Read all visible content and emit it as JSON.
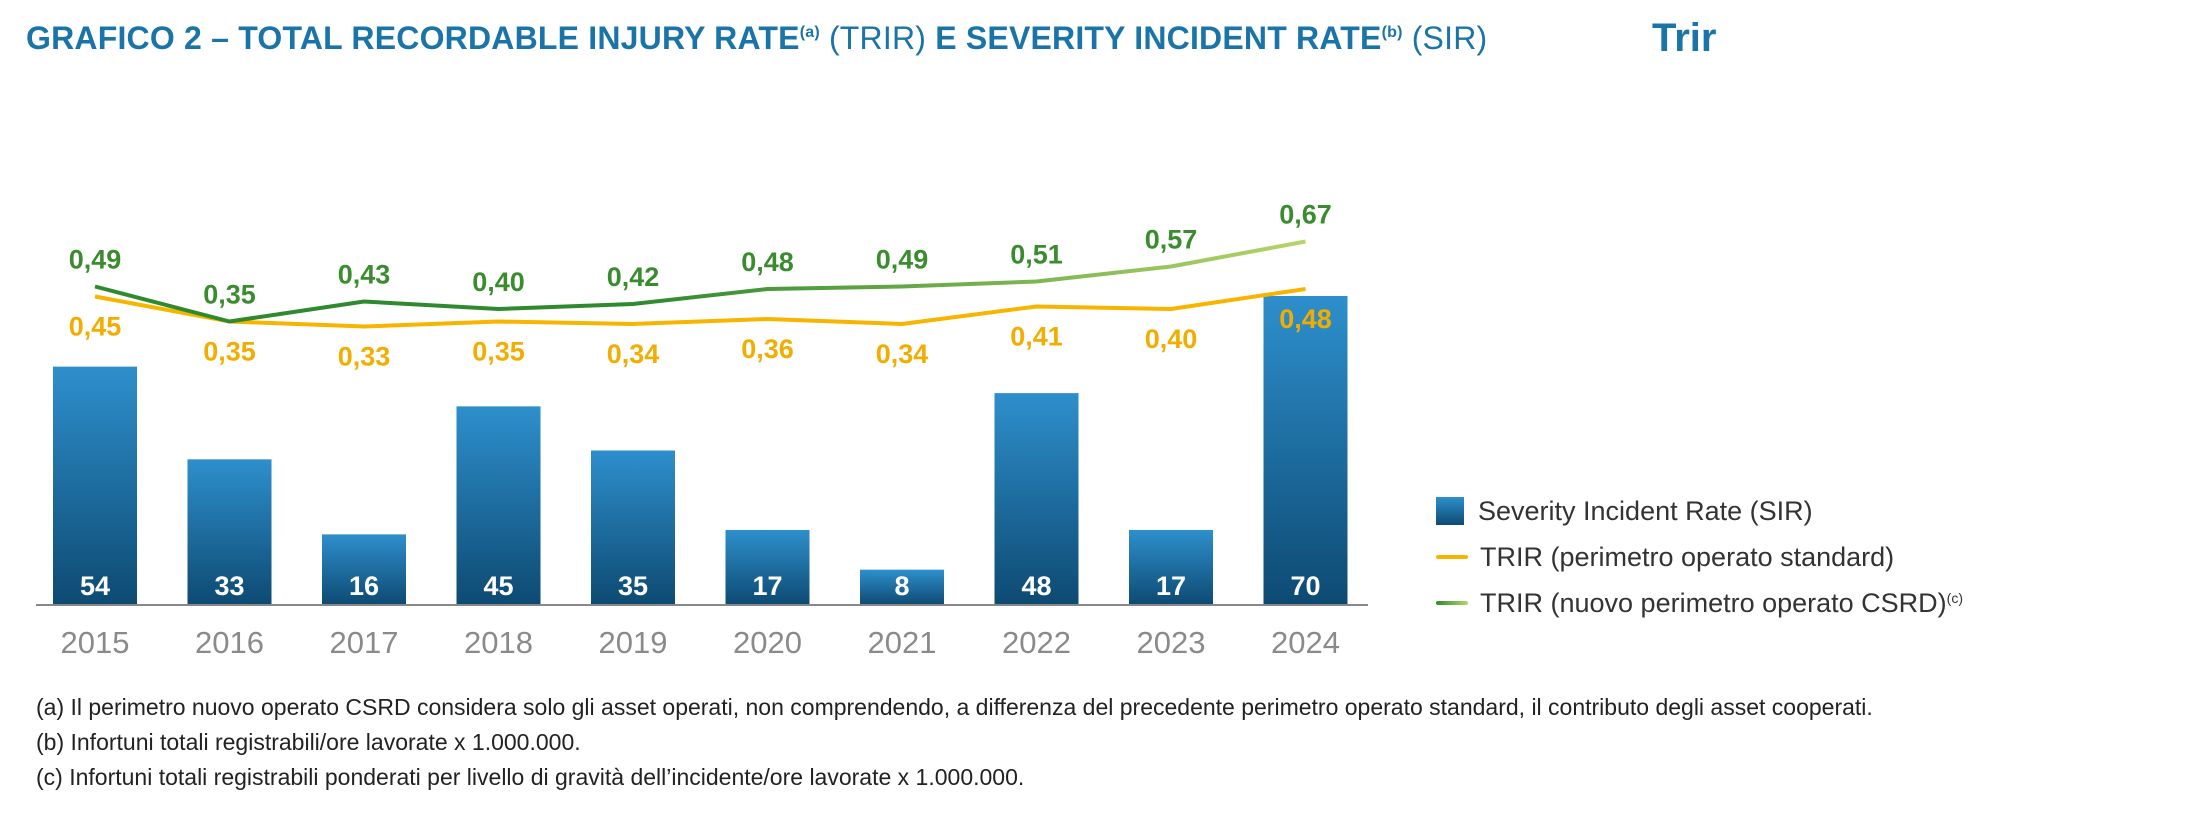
{
  "title": {
    "part1": "GRAFICO 2 – TOTAL RECORDABLE INJURY RATE",
    "sup1": "(a)",
    "part2": " (TRIR) ",
    "part3": "E SEVERITY INCIDENT RATE",
    "sup2": "(b)",
    "part4": " (SIR)"
  },
  "subtitle": "Trir",
  "colors": {
    "bar_top": "#2e8fcc",
    "bar_bottom": "#0d4a72",
    "trir_standard": "#f7b500",
    "trir_csrd_start": "#2f8a2f",
    "trir_csrd_end": "#b6d46a",
    "axis": "#888888"
  },
  "chart_data": {
    "type": "bar",
    "categories": [
      "2015",
      "2016",
      "2017",
      "2018",
      "2019",
      "2020",
      "2021",
      "2022",
      "2023",
      "2024"
    ],
    "series": [
      {
        "name": "Severity Incident Rate (SIR)",
        "type": "bar",
        "values": [
          54,
          33,
          16,
          45,
          35,
          17,
          8,
          48,
          17,
          70
        ],
        "labels": [
          "54",
          "33",
          "16",
          "45",
          "35",
          "17",
          "8",
          "48",
          "17",
          "70"
        ]
      },
      {
        "name": "TRIR (perimetro operato standard)",
        "type": "line",
        "values": [
          0.45,
          0.35,
          0.33,
          0.35,
          0.34,
          0.36,
          0.34,
          0.41,
          0.4,
          0.48
        ],
        "labels": [
          "0,45",
          "0,35",
          "0,33",
          "0,35",
          "0,34",
          "0,36",
          "0,34",
          "0,41",
          "0,40",
          "0,48"
        ]
      },
      {
        "name": "TRIR (nuovo perimetro operato CSRD)",
        "type": "line",
        "values": [
          0.49,
          0.35,
          0.43,
          0.4,
          0.42,
          0.48,
          0.49,
          0.51,
          0.57,
          0.67
        ],
        "labels": [
          "0,49",
          "0,35",
          "0,43",
          "0,40",
          "0,42",
          "0,48",
          "0,49",
          "0,51",
          "0,57",
          "0,67"
        ]
      }
    ],
    "legend_position": "right"
  },
  "legend": [
    {
      "label": "Severity Incident Rate (SIR)",
      "sup": ""
    },
    {
      "label": "TRIR (perimetro operato standard)",
      "sup": ""
    },
    {
      "label": "TRIR (nuovo perimetro operato CSRD)",
      "sup": "(c)"
    }
  ],
  "notes": [
    "(a) Il perimetro nuovo operato CSRD considera solo gli asset operati, non comprendendo, a differenza del precedente perimetro operato standard, il contributo degli asset cooperati.",
    "(b) Infortuni totali registrabili/ore lavorate x 1.000.000.",
    "(c) Infortuni totali registrabili ponderati per livello di gravità dell’incidente/ore lavorate x 1.000.000."
  ]
}
